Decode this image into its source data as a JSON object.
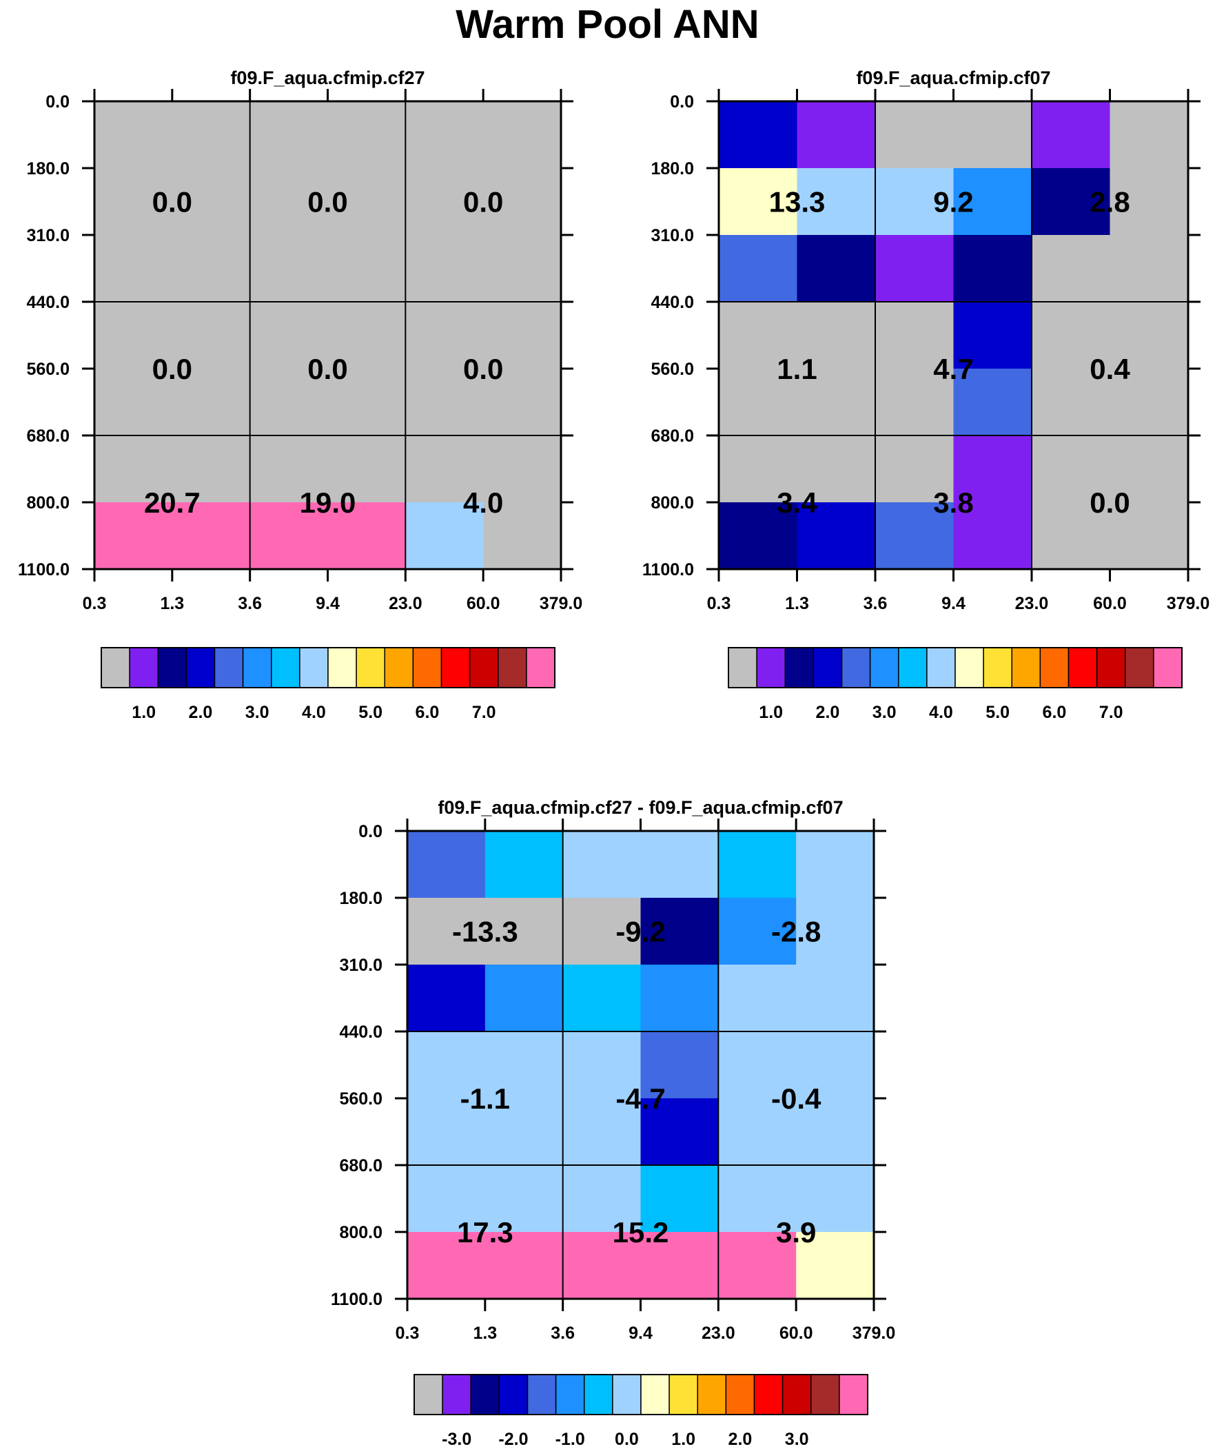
{
  "figure_title": "Warm Pool ANN",
  "colors": {
    "seq_palette": [
      "#c0c0c0",
      "#8020f0",
      "#00008b",
      "#0000cd",
      "#4169e1",
      "#1e90ff",
      "#00bfff",
      "#a0d2ff",
      "#ffffc8",
      "#ffe135",
      "#ffa500",
      "#ff6a00",
      "#ff0000",
      "#cd0000",
      "#a52a2a",
      "#ff69b4"
    ],
    "grid_line": "#000000",
    "frame": "#000000"
  },
  "chart_data": [
    {
      "type": "heatmap",
      "title": "f09.F_aqua.cfmip.cf27",
      "x_ticks": [
        "0.3",
        "1.3",
        "3.6",
        "9.4",
        "23.0",
        "60.0",
        "379.0"
      ],
      "y_ticks": [
        "0.0",
        "180.0",
        "310.0",
        "440.0",
        "560.0",
        "680.0",
        "800.0",
        "1100.0"
      ],
      "cells_color_index": [
        [
          0,
          0,
          0,
          0,
          0,
          0
        ],
        [
          0,
          0,
          0,
          0,
          0,
          0
        ],
        [
          0,
          0,
          0,
          0,
          0,
          0
        ],
        [
          0,
          0,
          0,
          0,
          0,
          0
        ],
        [
          0,
          0,
          0,
          0,
          0,
          0
        ],
        [
          0,
          0,
          0,
          0,
          0,
          0
        ],
        [
          15,
          15,
          15,
          15,
          7,
          0
        ]
      ],
      "group_values": [
        [
          "0.0",
          "0.0",
          "0.0"
        ],
        [
          "0.0",
          "0.0",
          "0.0"
        ],
        [
          "20.7",
          "19.0",
          "4.0"
        ]
      ],
      "colorbar": {
        "labels": [
          "1.0",
          "2.0",
          "3.0",
          "4.0",
          "5.0",
          "6.0",
          "7.0"
        ],
        "label_positions": [
          1.5,
          3.5,
          5.5,
          7.5,
          9.5,
          11.5,
          13.5
        ]
      }
    },
    {
      "type": "heatmap",
      "title": "f09.F_aqua.cfmip.cf07",
      "x_ticks": [
        "0.3",
        "1.3",
        "3.6",
        "9.4",
        "23.0",
        "60.0",
        "379.0"
      ],
      "y_ticks": [
        "0.0",
        "180.0",
        "310.0",
        "440.0",
        "560.0",
        "680.0",
        "800.0",
        "1100.0"
      ],
      "cells_color_index": [
        [
          3,
          1,
          0,
          0,
          1,
          0
        ],
        [
          8,
          7,
          7,
          5,
          2,
          0
        ],
        [
          4,
          2,
          1,
          2,
          0,
          0
        ],
        [
          0,
          0,
          0,
          3,
          0,
          0
        ],
        [
          0,
          0,
          0,
          4,
          0,
          0
        ],
        [
          0,
          0,
          0,
          1,
          0,
          0
        ],
        [
          2,
          3,
          4,
          1,
          0,
          0
        ]
      ],
      "group_values": [
        [
          "13.3",
          "9.2",
          "2.8"
        ],
        [
          "1.1",
          "4.7",
          "0.4"
        ],
        [
          "3.4",
          "3.8",
          "0.0"
        ]
      ],
      "colorbar": {
        "labels": [
          "1.0",
          "2.0",
          "3.0",
          "4.0",
          "5.0",
          "6.0",
          "7.0"
        ],
        "label_positions": [
          1.5,
          3.5,
          5.5,
          7.5,
          9.5,
          11.5,
          13.5
        ]
      }
    },
    {
      "type": "heatmap",
      "title": "f09.F_aqua.cfmip.cf27 - f09.F_aqua.cfmip.cf07",
      "x_ticks": [
        "0.3",
        "1.3",
        "3.6",
        "9.4",
        "23.0",
        "60.0",
        "379.0"
      ],
      "y_ticks": [
        "0.0",
        "180.0",
        "310.0",
        "440.0",
        "560.0",
        "680.0",
        "800.0",
        "1100.0"
      ],
      "cells_color_index": [
        [
          4,
          6,
          7,
          7,
          6,
          7
        ],
        [
          0,
          0,
          0,
          2,
          5,
          7
        ],
        [
          3,
          5,
          6,
          5,
          7,
          7
        ],
        [
          7,
          7,
          7,
          4,
          7,
          7
        ],
        [
          7,
          7,
          7,
          3,
          7,
          7
        ],
        [
          7,
          7,
          7,
          6,
          7,
          7
        ],
        [
          15,
          15,
          15,
          15,
          15,
          8
        ]
      ],
      "group_values": [
        [
          "-13.3",
          "-9.2",
          "-2.8"
        ],
        [
          "-1.1",
          "-4.7",
          "-0.4"
        ],
        [
          "17.3",
          "15.2",
          "3.9"
        ]
      ],
      "colorbar": {
        "labels": [
          "-3.0",
          "-2.0",
          "-1.0",
          "0.0",
          "1.0",
          "2.0",
          "3.0"
        ],
        "label_positions": [
          1.5,
          3.5,
          5.5,
          7.5,
          9.5,
          11.5,
          13.5
        ]
      }
    }
  ]
}
